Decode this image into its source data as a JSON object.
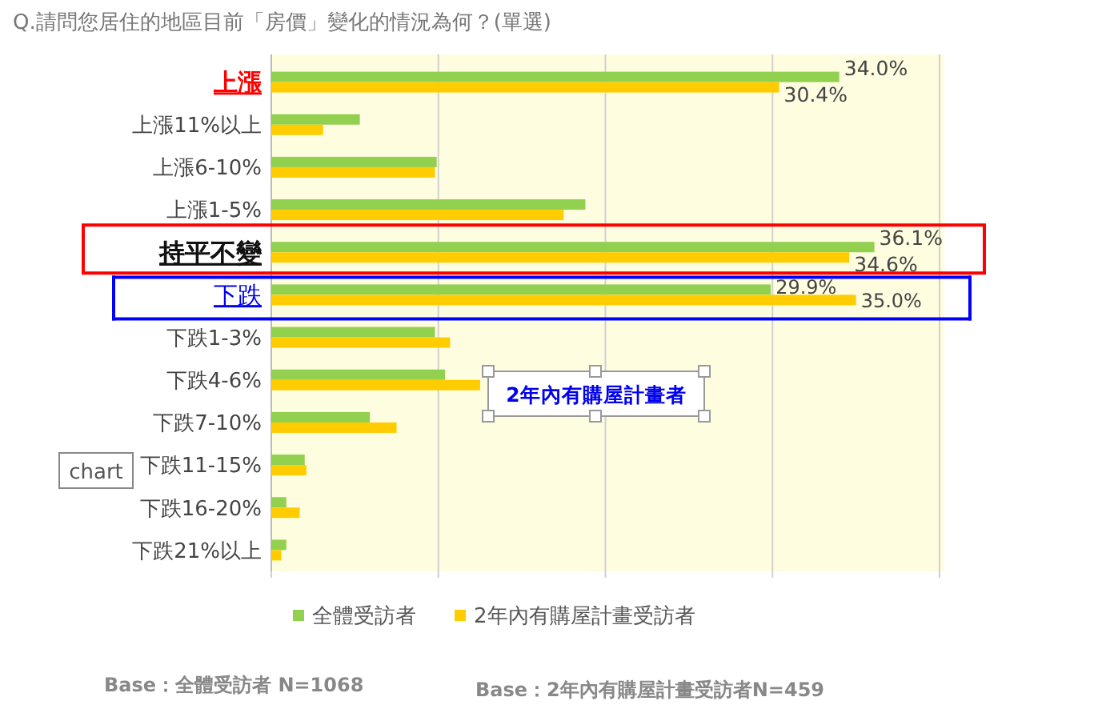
{
  "chart_data": {
    "type": "bar",
    "orientation": "horizontal",
    "title": "Q.請問您居住的地區目前「房價」變化的情況為何？(單選)",
    "categories": [
      "上漲",
      "上漲11%以上",
      "上漲6-10%",
      "上漲1-5%",
      "持平不變",
      "下跌",
      "下跌1-3%",
      "下跌4-6%",
      "下跌7-10%",
      "下跌11-15%",
      "下跌16-20%",
      "下跌21%以上"
    ],
    "series": [
      {
        "name": "全體受訪者",
        "color": "#92d050",
        "values": [
          34.0,
          5.3,
          9.9,
          18.8,
          36.1,
          29.9,
          9.8,
          10.4,
          5.9,
          2.0,
          0.9,
          0.9
        ],
        "value_labels": [
          "34.0%",
          null,
          null,
          null,
          "36.1%",
          "29.9%",
          null,
          null,
          null,
          null,
          null,
          null
        ]
      },
      {
        "name": "2年內有購屋計畫受訪者",
        "color": "#ffcc00",
        "values": [
          30.4,
          3.1,
          9.8,
          17.5,
          34.6,
          35.0,
          10.7,
          12.5,
          7.5,
          2.1,
          1.7,
          0.6
        ],
        "value_labels": [
          "30.4%",
          null,
          null,
          null,
          "34.6%",
          "35.0%",
          null,
          null,
          null,
          null,
          null,
          null
        ]
      }
    ],
    "xlim": [
      0,
      40
    ],
    "xticks": [
      {
        "value": 0,
        "label": null
      },
      {
        "value": 10,
        "label": null
      },
      {
        "value": 20,
        "label": null
      },
      {
        "value": 30,
        "label": null
      },
      {
        "value": 40,
        "label": null
      }
    ],
    "grid": "x",
    "legend": "bottom",
    "annotations": [
      "2年內有購屋計畫者",
      "chart",
      "Base：全體受訪者 N=1068",
      "Base：2年內有購屋計畫受訪者N=459"
    ]
  }
}
